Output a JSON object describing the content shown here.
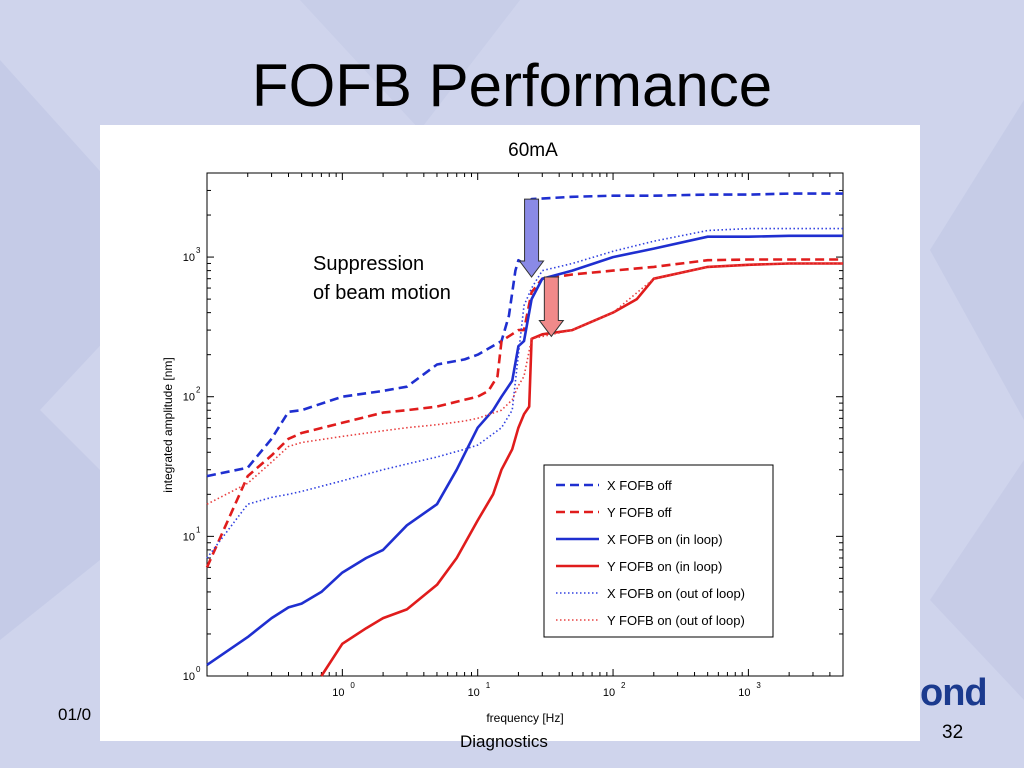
{
  "slide": {
    "title": "FOFB Performance",
    "footer_date": "01/0",
    "footer_text": "Diagnostics",
    "page_number": "32",
    "logo_text": "ond"
  },
  "chart_data": {
    "type": "line",
    "title": "60mA",
    "xlabel": "frequency [Hz]",
    "ylabel": "integrated amplitude [nm]",
    "xscale": "log",
    "yscale": "log",
    "xlim": [
      0.1,
      5000
    ],
    "ylim": [
      1,
      4000
    ],
    "xticks": [
      {
        "value": 1,
        "label": "10",
        "exp": "0"
      },
      {
        "value": 10,
        "label": "10",
        "exp": "1"
      },
      {
        "value": 100,
        "label": "10",
        "exp": "2"
      },
      {
        "value": 1000,
        "label": "10",
        "exp": "3"
      }
    ],
    "yticks": [
      {
        "value": 1,
        "label": "10",
        "exp": "0"
      },
      {
        "value": 10,
        "label": "10",
        "exp": "1"
      },
      {
        "value": 100,
        "label": "10",
        "exp": "2"
      },
      {
        "value": 1000,
        "label": "10",
        "exp": "3"
      }
    ],
    "legend_position": "bottom-right",
    "series": [
      {
        "name": "X FOFB off",
        "color": "#1f2fd0",
        "style": "dashed",
        "x": [
          0.1,
          0.2,
          0.3,
          0.4,
          0.5,
          1,
          2,
          3,
          5,
          8,
          10,
          15,
          17,
          19,
          20,
          22,
          23,
          24,
          25,
          50,
          100,
          200,
          500,
          1000,
          2000,
          5000
        ],
        "y": [
          27,
          31,
          50,
          78,
          80,
          100,
          110,
          118,
          170,
          185,
          200,
          250,
          380,
          800,
          950,
          900,
          950,
          1400,
          2600,
          2700,
          2750,
          2750,
          2800,
          2800,
          2850,
          2850
        ]
      },
      {
        "name": "Y FOFB off",
        "color": "#e01c1c",
        "style": "dashed",
        "x": [
          0.1,
          0.2,
          0.3,
          0.4,
          0.5,
          1,
          2,
          3,
          5,
          8,
          10,
          12,
          14,
          15,
          20,
          22,
          25,
          30,
          50,
          100,
          200,
          500,
          1000,
          2000,
          5000
        ],
        "y": [
          6,
          27,
          38,
          50,
          55,
          65,
          77,
          80,
          85,
          95,
          100,
          110,
          140,
          250,
          300,
          300,
          560,
          700,
          750,
          800,
          850,
          950,
          960,
          960,
          960
        ]
      },
      {
        "name": "X FOFB on (in loop)",
        "color": "#1f2fd0",
        "style": "solid",
        "x": [
          0.1,
          0.2,
          0.3,
          0.4,
          0.5,
          0.7,
          1,
          1.5,
          2,
          3,
          5,
          7,
          10,
          13,
          15,
          18,
          20,
          22,
          25,
          30,
          50,
          100,
          200,
          500,
          1000,
          2000,
          5000
        ],
        "y": [
          1.2,
          1.9,
          2.6,
          3.1,
          3.3,
          4,
          5.5,
          7,
          8,
          12,
          17,
          30,
          60,
          80,
          100,
          130,
          230,
          250,
          500,
          700,
          800,
          1000,
          1150,
          1400,
          1400,
          1420,
          1420
        ]
      },
      {
        "name": "Y FOFB on (in loop)",
        "color": "#e01c1c",
        "style": "solid",
        "x": [
          0.7,
          1,
          1.5,
          2,
          3,
          5,
          7,
          10,
          13,
          15,
          18,
          20,
          22,
          24,
          25,
          30,
          50,
          100,
          150,
          200,
          500,
          1000,
          2000,
          5000
        ],
        "y": [
          1,
          1.7,
          2.2,
          2.6,
          3,
          4.5,
          7,
          13,
          20,
          30,
          42,
          60,
          75,
          85,
          260,
          280,
          300,
          400,
          500,
          700,
          850,
          880,
          900,
          900
        ]
      },
      {
        "name": "X FOFB on (out of loop)",
        "color": "#3040e0",
        "style": "dotted",
        "x": [
          0.1,
          0.2,
          0.3,
          0.4,
          0.5,
          1,
          2,
          3,
          5,
          8,
          10,
          15,
          18,
          20,
          22,
          25,
          30,
          50,
          100,
          200,
          500,
          1000,
          2000,
          5000
        ],
        "y": [
          7,
          17,
          19,
          20,
          21,
          25,
          30,
          33,
          37,
          42,
          45,
          60,
          80,
          200,
          450,
          600,
          800,
          900,
          1100,
          1300,
          1550,
          1600,
          1600,
          1600
        ]
      },
      {
        "name": "Y FOFB on (out of loop)",
        "color": "#e84040",
        "style": "dotted",
        "x": [
          0.1,
          0.2,
          0.3,
          0.4,
          0.5,
          1,
          2,
          3,
          5,
          8,
          10,
          15,
          18,
          20,
          22,
          25,
          30,
          50,
          100,
          200,
          500,
          1000,
          2000,
          5000
        ],
        "y": [
          17,
          24,
          34,
          44,
          47,
          52,
          57,
          60,
          63,
          67,
          70,
          80,
          95,
          120,
          140,
          260,
          270,
          300,
          400,
          700,
          850,
          880,
          900,
          900
        ]
      }
    ],
    "annotations": [
      {
        "text_lines": [
          "Suppression",
          "of beam motion"
        ]
      }
    ],
    "arrows": [
      {
        "color": "#8a8ae6",
        "x": 25,
        "y_from": 2600,
        "y_to": 720
      },
      {
        "color": "#f08a8a",
        "x": 35,
        "y_from": 720,
        "y_to": 270
      }
    ]
  }
}
